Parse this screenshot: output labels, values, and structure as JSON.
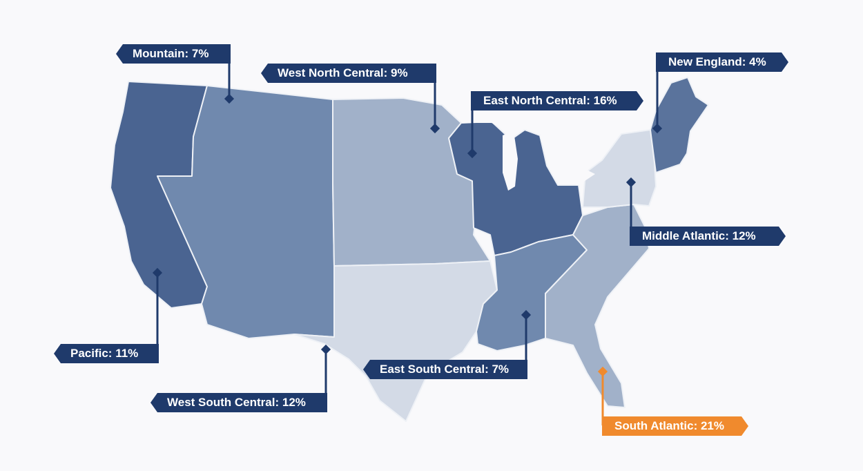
{
  "map": {
    "colors": {
      "background": "#f9f9fb",
      "label_default": "#1f3a6b",
      "label_highlight": "#f08a2d",
      "region_border": "#eef1f6"
    },
    "regions": [
      {
        "id": "pacific",
        "label": "Pacific: 11%",
        "share_percent": 11,
        "fill": "#4a6491"
      },
      {
        "id": "mountain",
        "label": "Mountain: 7%",
        "share_percent": 7,
        "fill": "#7089ae"
      },
      {
        "id": "west-north-central",
        "label": "West North Central: 9%",
        "share_percent": 9,
        "fill": "#a1b1c9"
      },
      {
        "id": "east-north-central",
        "label": "East North Central: 16%",
        "share_percent": 16,
        "fill": "#4a6491"
      },
      {
        "id": "new-england",
        "label": "New England: 4%",
        "share_percent": 4,
        "fill": "#5a739c"
      },
      {
        "id": "middle-atlantic",
        "label": "Middle Atlantic: 12%",
        "share_percent": 12,
        "fill": "#d3dae6"
      },
      {
        "id": "south-atlantic",
        "label": "South Atlantic: 21%",
        "share_percent": 21,
        "fill": "#a1b1c9",
        "highlight": true
      },
      {
        "id": "east-south-central",
        "label": "East South Central: 7%",
        "share_percent": 7,
        "fill": "#7089ae"
      },
      {
        "id": "west-south-central",
        "label": "West South Central: 12%",
        "share_percent": 12,
        "fill": "#d3dae6"
      }
    ]
  }
}
